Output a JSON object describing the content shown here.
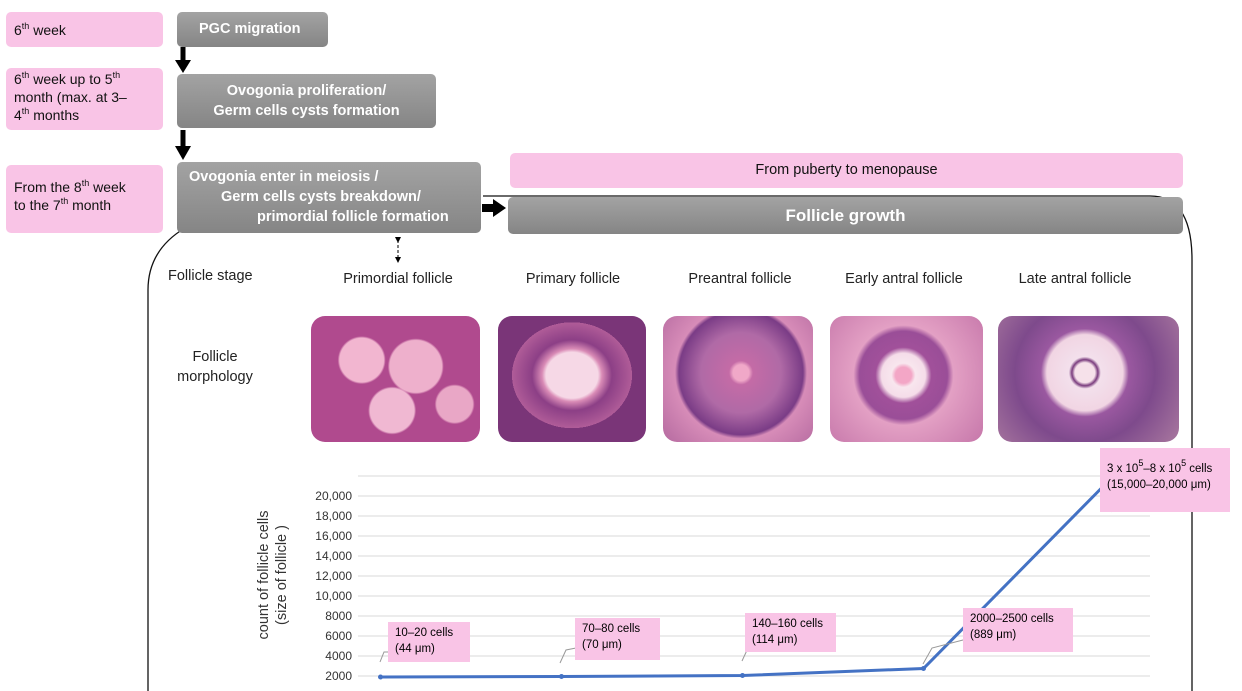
{
  "timeline": [
    {
      "period": [
        [
          "6",
          "th",
          " week"
        ]
      ],
      "event": [
        "PGC migration"
      ]
    },
    {
      "period": [
        [
          "6",
          "th",
          " week up to 5",
          "th"
        ],
        [
          "month (max. at 3–"
        ],
        [
          "4",
          "th",
          " months"
        ]
      ],
      "event": [
        "Ovogonia proliferation/",
        "Germ cells cysts formation"
      ]
    },
    {
      "period": [
        [
          "From the 8",
          "th",
          " week"
        ],
        [
          "to the 7",
          "th",
          " month"
        ]
      ],
      "event": [
        "Ovogonia enter in meiosis /",
        "Germ cells cysts breakdown/",
        "primordial follicle formation"
      ]
    }
  ],
  "growth": {
    "period": "From puberty to menopause",
    "title": "Follicle growth"
  },
  "row_labels": {
    "stage": "Follicle stage",
    "morphology": [
      "Follicle",
      "morphology"
    ]
  },
  "chart_data": {
    "type": "line",
    "categories": [
      "Primordial follicle",
      "Primary follicle",
      "Preantral follicle",
      "Early antral follicle",
      "Late antral follicle"
    ],
    "y_label": [
      "count of follicle cells",
      "(size of follicle )"
    ],
    "values": [
      1900,
      1950,
      2050,
      2750,
      21100
    ],
    "color": "#4472c4",
    "ylim": [
      2000,
      22000
    ],
    "yticks": [
      2000,
      4000,
      6000,
      8000,
      {
        "value": 10000,
        "label": "10,000"
      },
      {
        "value": 12000,
        "label": "12,000"
      },
      {
        "value": 14000,
        "label": "14,000"
      },
      {
        "value": 16000,
        "label": "16,000"
      },
      {
        "value": 18000,
        "label": "18,000"
      },
      {
        "value": 20000,
        "label": "20,000"
      }
    ],
    "grid": true,
    "annotations": [
      {
        "lines": [
          [
            "10–20 cells"
          ],
          [
            "(44 μm)"
          ]
        ]
      },
      {
        "lines": [
          [
            "70–80 cells"
          ],
          [
            "(70 μm)"
          ]
        ]
      },
      {
        "lines": [
          [
            "140–160 cells"
          ],
          [
            "(114 μm)"
          ]
        ]
      },
      {
        "lines": [
          [
            "2000–2500 cells"
          ],
          [
            "(889 μm)"
          ]
        ]
      },
      {
        "lines": [
          [
            "3 x 10",
            "5",
            "–8 x 10",
            "5",
            " cells"
          ],
          [
            "(15,000–20,000  μm)"
          ]
        ]
      }
    ]
  }
}
